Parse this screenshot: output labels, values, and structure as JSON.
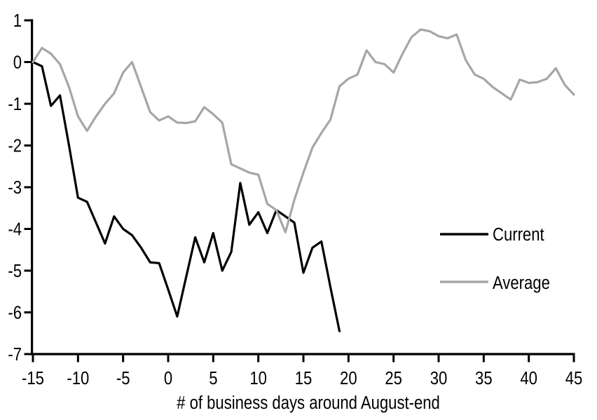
{
  "chart_data": {
    "type": "line",
    "title": "",
    "xlabel": "# of business days around August-end",
    "ylabel": "",
    "xlim": [
      -15,
      45
    ],
    "ylim": [
      -7,
      1
    ],
    "x_ticks": [
      -15,
      -10,
      -5,
      0,
      5,
      10,
      15,
      20,
      25,
      30,
      35,
      40,
      45
    ],
    "y_ticks": [
      1,
      0,
      -1,
      -2,
      -3,
      -4,
      -5,
      -6,
      -7
    ],
    "grid": false,
    "legend_position": "right-middle",
    "axis_color": "#000000",
    "series": [
      {
        "name": "Current",
        "color": "#000000",
        "x": [
          -15,
          -14,
          -13,
          -12,
          -11,
          -10,
          -9,
          -8,
          -7,
          -6,
          -5,
          -4,
          -3,
          -2,
          -1,
          0,
          1,
          2,
          3,
          4,
          5,
          6,
          7,
          8,
          9,
          10,
          11,
          12,
          13,
          14,
          15,
          16,
          17,
          18,
          19
        ],
        "values": [
          0.0,
          -0.1,
          -1.05,
          -0.8,
          -2.0,
          -3.25,
          -3.35,
          -3.85,
          -4.35,
          -3.7,
          -4.0,
          -4.15,
          -4.45,
          -4.8,
          -4.82,
          -5.45,
          -6.1,
          -5.15,
          -4.2,
          -4.8,
          -4.1,
          -5.0,
          -4.55,
          -2.9,
          -3.9,
          -3.6,
          -4.1,
          -3.55,
          -3.7,
          -3.85,
          -5.05,
          -4.45,
          -4.3,
          -5.4,
          -6.45
        ]
      },
      {
        "name": "Average",
        "color": "#A6A6A6",
        "x": [
          -15,
          -14,
          -13,
          -12,
          -11,
          -10,
          -9,
          -8,
          -7,
          -6,
          -5,
          -4,
          -3,
          -2,
          -1,
          0,
          1,
          2,
          3,
          4,
          5,
          6,
          7,
          8,
          9,
          10,
          11,
          12,
          13,
          14,
          15,
          16,
          17,
          18,
          19,
          20,
          21,
          22,
          23,
          24,
          25,
          26,
          27,
          28,
          29,
          30,
          31,
          32,
          33,
          34,
          35,
          36,
          37,
          38,
          39,
          40,
          41,
          42,
          43,
          44,
          45
        ],
        "values": [
          0.0,
          0.34,
          0.2,
          -0.05,
          -0.6,
          -1.3,
          -1.65,
          -1.3,
          -1.0,
          -0.75,
          -0.25,
          0.0,
          -0.6,
          -1.2,
          -1.4,
          -1.3,
          -1.45,
          -1.46,
          -1.42,
          -1.08,
          -1.25,
          -1.45,
          -2.45,
          -2.55,
          -2.65,
          -2.7,
          -3.4,
          -3.55,
          -4.08,
          -3.3,
          -2.65,
          -2.05,
          -1.7,
          -1.38,
          -0.58,
          -0.4,
          -0.3,
          0.28,
          0.0,
          -0.05,
          -0.25,
          0.2,
          0.6,
          0.78,
          0.74,
          0.62,
          0.57,
          0.66,
          0.05,
          -0.3,
          -0.4,
          -0.6,
          -0.75,
          -0.9,
          -0.42,
          -0.5,
          -0.48,
          -0.4,
          -0.15,
          -0.55,
          -0.78
        ]
      }
    ]
  }
}
